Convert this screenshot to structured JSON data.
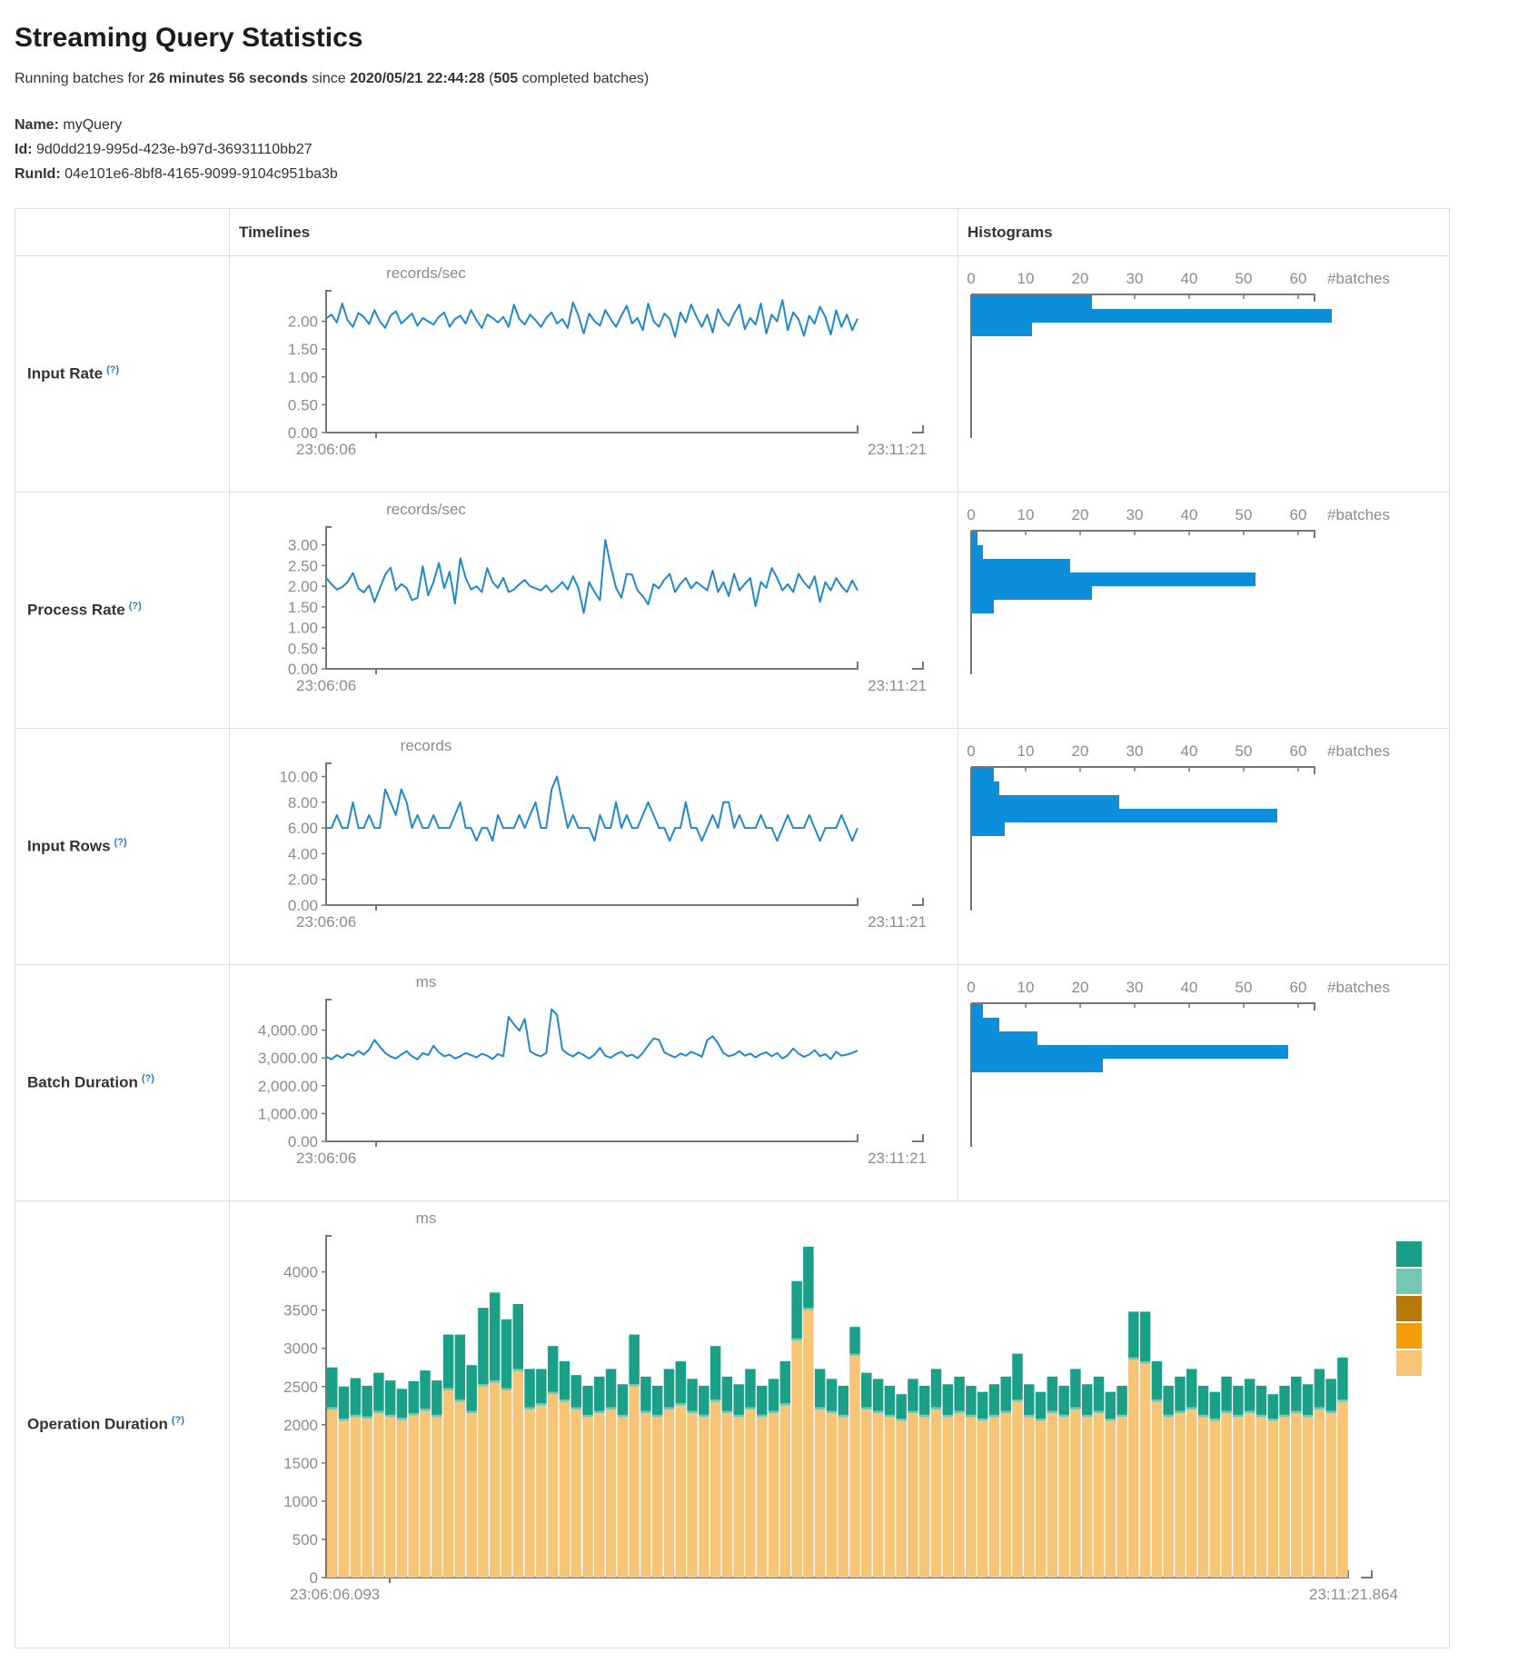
{
  "page": {
    "title": "Streaming Query Statistics"
  },
  "summary": {
    "prefix": "Running batches for ",
    "duration": "26 minutes 56 seconds",
    "mid": " since ",
    "start_time": "2020/05/21 22:44:28",
    "paren": " (",
    "completed_batches": "505",
    "suffix": " completed batches)"
  },
  "meta": {
    "name_label": "Name:",
    "name_value": "myQuery",
    "id_label": "Id:",
    "id_value": "9d0dd219-995d-423e-b97d-36931110bb27",
    "runid_label": "RunId:",
    "runid_value": "04e101e6-8bf8-4165-9099-9104c951ba3b"
  },
  "table": {
    "timelines_header": "Timelines",
    "histograms_header": "Histograms",
    "rows": [
      {
        "label": "Input Rate",
        "help": "(?)"
      },
      {
        "label": "Process Rate",
        "help": "(?)"
      },
      {
        "label": "Input Rows",
        "help": "(?)"
      },
      {
        "label": "Batch Duration",
        "help": "(?)"
      },
      {
        "label": "Operation Duration",
        "help": "(?)"
      }
    ]
  },
  "colors": {
    "line": "#1f89ca",
    "hist_bar": "#0d8edb",
    "axis": "#777777",
    "tick": "#8c8c8c",
    "muted": "#8c8c8c"
  },
  "chart_data": [
    {
      "name": "input-rate-timeline",
      "type": "line",
      "title": "records/sec",
      "x_start": "23:06:06",
      "x_end": "23:11:21",
      "ylim": [
        0,
        2.45
      ],
      "yticks": {
        "values": [
          0,
          0.5,
          1,
          1.5,
          2
        ],
        "labels": [
          "0.00",
          "0.50",
          "1.00",
          "1.50",
          "2.00"
        ]
      },
      "values": [
        2.05,
        2.12,
        1.98,
        2.32,
        2.02,
        1.9,
        2.15,
        2.08,
        1.95,
        2.2,
        2.0,
        1.88,
        2.1,
        2.18,
        1.96,
        2.05,
        2.14,
        1.92,
        2.06,
        2.0,
        1.94,
        2.08,
        2.16,
        1.9,
        2.04,
        2.1,
        1.96,
        2.2,
        2.02,
        1.88,
        2.12,
        2.06,
        1.98,
        2.08,
        1.9,
        2.3,
        2.04,
        1.94,
        2.12,
        2.02,
        1.9,
        2.06,
        2.16,
        1.96,
        2.04,
        1.88,
        2.34,
        2.1,
        1.78,
        2.14,
        2.0,
        1.92,
        2.2,
        2.04,
        1.9,
        2.1,
        2.28,
        1.96,
        2.06,
        1.84,
        2.32,
        2.0,
        1.9,
        2.14,
        2.04,
        1.72,
        2.16,
        1.98,
        2.3,
        2.08,
        1.9,
        2.12,
        1.8,
        2.22,
        2.02,
        1.92,
        2.14,
        2.3,
        1.86,
        2.06,
        1.94,
        2.32,
        1.78,
        2.12,
        2.0,
        2.38,
        1.84,
        2.16,
        2.04,
        1.74,
        2.1,
        1.96,
        2.26,
        2.08,
        1.76,
        2.2,
        1.9,
        2.12,
        1.84,
        2.05
      ]
    },
    {
      "name": "input-rate-histogram",
      "type": "bar",
      "orientation": "horizontal",
      "xlabel": "#batches",
      "xticks": [
        0,
        10,
        20,
        30,
        40,
        50,
        60
      ],
      "xlim": [
        0,
        63
      ],
      "values": [
        22,
        66,
        11
      ]
    },
    {
      "name": "process-rate-timeline",
      "type": "line",
      "title": "records/sec",
      "x_start": "23:06:06",
      "x_end": "23:11:21",
      "ylim": [
        0,
        3.3
      ],
      "yticks": {
        "values": [
          0,
          0.5,
          1,
          1.5,
          2,
          2.5,
          3
        ],
        "labels": [
          "0.00",
          "0.50",
          "1.00",
          "1.50",
          "2.00",
          "2.50",
          "3.00"
        ]
      },
      "values": [
        2.2,
        2.05,
        1.92,
        1.98,
        2.1,
        2.32,
        1.95,
        1.85,
        2.02,
        1.62,
        1.95,
        2.28,
        2.45,
        1.9,
        2.05,
        1.96,
        1.66,
        1.72,
        2.48,
        1.78,
        2.1,
        2.56,
        1.95,
        2.35,
        1.58,
        2.68,
        2.2,
        1.92,
        2.0,
        1.86,
        2.44,
        2.1,
        1.96,
        2.2,
        1.86,
        1.92,
        2.05,
        2.15,
        2.0,
        1.95,
        1.9,
        2.02,
        1.86,
        1.96,
        2.1,
        1.92,
        2.24,
        1.96,
        1.35,
        2.1,
        1.86,
        1.66,
        3.12,
        2.5,
        1.96,
        1.72,
        2.3,
        2.28,
        1.9,
        1.76,
        1.56,
        2.05,
        1.95,
        2.16,
        2.3,
        1.86,
        2.06,
        2.2,
        1.95,
        2.1,
        2.0,
        1.9,
        2.38,
        1.86,
        2.1,
        1.76,
        2.3,
        1.9,
        2.06,
        2.2,
        1.52,
        2.1,
        1.96,
        2.44,
        2.2,
        1.9,
        2.05,
        1.86,
        2.3,
        2.1,
        1.95,
        2.24,
        1.62,
        2.1,
        1.9,
        2.2,
        2.0,
        1.86,
        2.14,
        1.9
      ]
    },
    {
      "name": "process-rate-histogram",
      "type": "bar",
      "orientation": "horizontal",
      "xlabel": "#batches",
      "xticks": [
        0,
        10,
        20,
        30,
        40,
        50,
        60
      ],
      "xlim": [
        0,
        63
      ],
      "values": [
        1,
        2,
        18,
        52,
        22,
        4
      ]
    },
    {
      "name": "input-rows-timeline",
      "type": "line",
      "title": "records",
      "x_start": "23:06:06",
      "x_end": "23:11:21",
      "ylim": [
        0,
        10.6
      ],
      "yticks": {
        "values": [
          0,
          2,
          4,
          6,
          8,
          10
        ],
        "labels": [
          "0.00",
          "2.00",
          "4.00",
          "6.00",
          "8.00",
          "10.00"
        ]
      },
      "values": [
        6,
        6,
        7,
        6,
        6,
        8,
        6,
        6,
        7,
        6,
        6,
        9,
        8,
        7,
        9,
        8,
        6,
        7,
        6,
        6,
        7,
        6,
        6,
        6,
        7,
        8,
        6,
        6,
        5,
        6,
        6,
        5,
        7,
        6,
        6,
        6,
        7,
        6,
        7,
        8,
        6,
        6,
        9,
        10,
        8,
        6,
        7,
        6,
        6,
        6,
        5,
        7,
        6,
        6,
        8,
        6,
        7,
        6,
        6,
        7,
        8,
        7,
        6,
        6,
        5,
        6,
        6,
        8,
        6,
        6,
        5,
        6,
        7,
        6,
        8,
        8,
        6,
        7,
        6,
        6,
        6,
        7,
        6,
        6,
        5,
        6,
        7,
        6,
        6,
        6,
        7,
        6,
        5,
        6,
        6,
        6,
        7,
        6,
        5,
        6
      ]
    },
    {
      "name": "input-rows-histogram",
      "type": "bar",
      "orientation": "horizontal",
      "xlabel": "#batches",
      "xticks": [
        0,
        10,
        20,
        30,
        40,
        50,
        60
      ],
      "xlim": [
        0,
        63
      ],
      "values": [
        4,
        5,
        27,
        56,
        6
      ]
    },
    {
      "name": "batch-duration-timeline",
      "type": "line",
      "title": "ms",
      "x_start": "23:06:06",
      "x_end": "23:11:21",
      "ylim": [
        0,
        4900
      ],
      "yticks": {
        "values": [
          0,
          1000,
          2000,
          3000,
          4000
        ],
        "labels": [
          "0.00",
          "1,000.00",
          "2,000.00",
          "3,000.00",
          "4,000.00"
        ]
      },
      "values": [
        3050,
        2950,
        3100,
        3000,
        3150,
        3080,
        3250,
        3120,
        3300,
        3650,
        3400,
        3180,
        3050,
        2980,
        3120,
        3240,
        3060,
        2950,
        3180,
        3100,
        3440,
        3200,
        3060,
        3120,
        2980,
        3060,
        3180,
        3100,
        3020,
        3150,
        3080,
        2960,
        3140,
        3060,
        4480,
        4200,
        3980,
        4400,
        3240,
        3120,
        3060,
        3180,
        4750,
        4550,
        3300,
        3150,
        3050,
        3200,
        3100,
        2980,
        3120,
        3360,
        3080,
        3010,
        3140,
        3220,
        3060,
        3120,
        2990,
        3180,
        3450,
        3700,
        3650,
        3200,
        3100,
        3020,
        3160,
        3080,
        3220,
        3140,
        3040,
        3640,
        3780,
        3520,
        3180,
        3060,
        3120,
        3240,
        3080,
        3160,
        3020,
        3140,
        3200,
        3060,
        3180,
        2980,
        3100,
        3340,
        3160,
        3040,
        3120,
        3280,
        3060,
        3140,
        2960,
        3220,
        3080,
        3120,
        3180,
        3260
      ]
    },
    {
      "name": "batch-duration-histogram",
      "type": "bar",
      "orientation": "horizontal",
      "xlabel": "#batches",
      "xticks": [
        0,
        10,
        20,
        30,
        40,
        50,
        60
      ],
      "xlim": [
        0,
        63
      ],
      "values": [
        2,
        5,
        12,
        58,
        24
      ]
    },
    {
      "name": "operation-duration",
      "type": "bar",
      "stacked": true,
      "title": "ms",
      "x_start": "23:06:06.093",
      "x_end": "23:11:21.864",
      "ylim": [
        0,
        4400
      ],
      "yticks": {
        "values": [
          0,
          500,
          1000,
          1500,
          2000,
          2500,
          3000,
          3500,
          4000
        ],
        "labels": [
          "0",
          "500",
          "1000",
          "1500",
          "2000",
          "2500",
          "3000",
          "3500",
          "4000"
        ]
      },
      "series": [
        {
          "color": "#f6c577",
          "values": [
            2200,
            2050,
            2100,
            2080,
            2150,
            2100,
            2060,
            2120,
            2180,
            2100,
            2450,
            2300,
            2150,
            2500,
            2550,
            2450,
            2700,
            2200,
            2250,
            2400,
            2300,
            2200,
            2100,
            2150,
            2200,
            2100,
            2500,
            2150,
            2100,
            2200,
            2250,
            2150,
            2100,
            2300,
            2150,
            2100,
            2200,
            2100,
            2150,
            2250,
            3100,
            3500,
            2200,
            2150,
            2100,
            2900,
            2200,
            2150,
            2100,
            2050,
            2150,
            2100,
            2200,
            2100,
            2150,
            2100,
            2050,
            2100,
            2150,
            2300,
            2100,
            2050,
            2150,
            2100,
            2200,
            2100,
            2150,
            2050,
            2100,
            2850,
            2800,
            2300,
            2100,
            2150,
            2200,
            2100,
            2050,
            2150,
            2100,
            2150,
            2100,
            2050,
            2100,
            2150,
            2100,
            2200,
            2150,
            2300
          ]
        },
        {
          "color": "#75c7b4",
          "constant": 30
        },
        {
          "color": "#1aa087",
          "values": [
            520,
            420,
            480,
            400,
            500,
            450,
            380,
            420,
            500,
            450,
            700,
            850,
            600,
            1000,
            1150,
            900,
            850,
            500,
            450,
            600,
            500,
            420,
            380,
            450,
            500,
            400,
            650,
            450,
            380,
            500,
            550,
            420,
            380,
            700,
            450,
            400,
            500,
            380,
            420,
            550,
            750,
            800,
            500,
            420,
            380,
            350,
            450,
            420,
            380,
            320,
            420,
            380,
            500,
            400,
            450,
            380,
            350,
            400,
            450,
            600,
            400,
            350,
            450,
            380,
            500,
            400,
            450,
            350,
            380,
            600,
            650,
            500,
            380,
            450,
            500,
            380,
            350,
            450,
            380,
            420,
            380,
            320,
            380,
            450,
            400,
            500,
            420,
            550
          ]
        }
      ],
      "legend_colors": [
        "#1aa087",
        "#75c7b4",
        "#b8790b",
        "#f39c0e",
        "#f6c577"
      ]
    }
  ]
}
